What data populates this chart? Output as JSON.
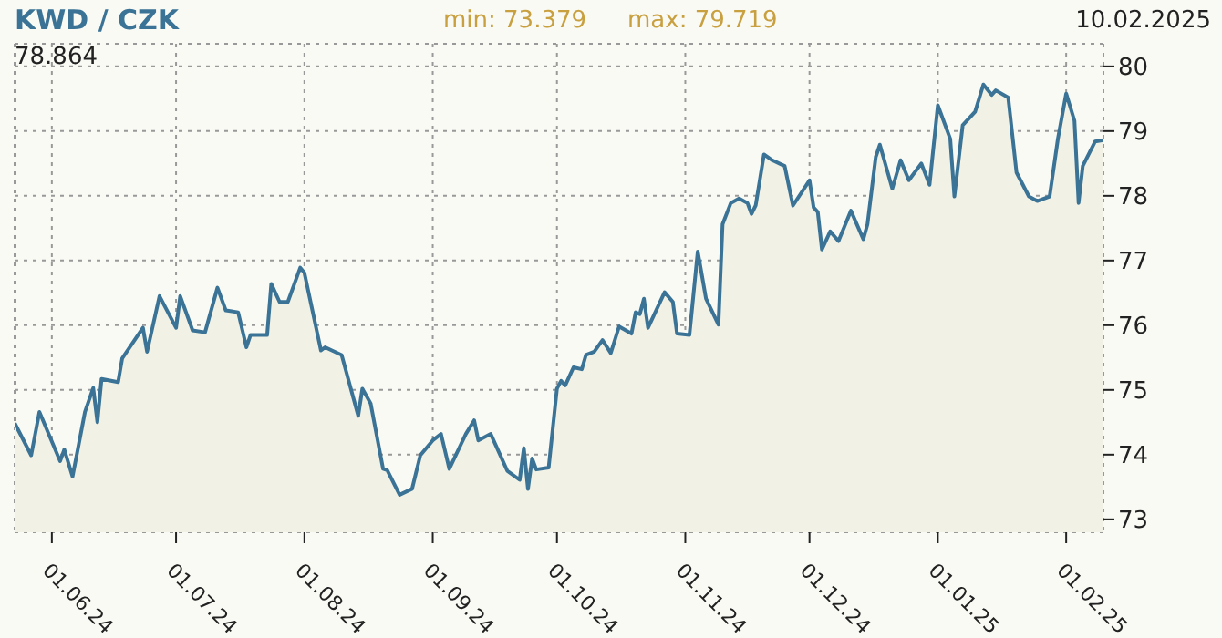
{
  "chart_data": {
    "type": "area",
    "title": "KWD / CZK",
    "annotations": [
      "min: 73.379",
      "max: 79.719",
      "10.02.2025",
      "78.864"
    ],
    "x": [
      "2024-05-23",
      "2024-05-27",
      "2024-05-29",
      "2024-06-03",
      "2024-06-04",
      "2024-06-06",
      "2024-06-09",
      "2024-06-11",
      "2024-06-12",
      "2024-06-13",
      "2024-06-17",
      "2024-06-18",
      "2024-06-23",
      "2024-06-24",
      "2024-06-27",
      "2024-07-01",
      "2024-07-02",
      "2024-07-05",
      "2024-07-08",
      "2024-07-11",
      "2024-07-13",
      "2024-07-16",
      "2024-07-18",
      "2024-07-19",
      "2024-07-23",
      "2024-07-24",
      "2024-07-26",
      "2024-07-28",
      "2024-07-31",
      "2024-08-01",
      "2024-08-05",
      "2024-08-06",
      "2024-08-10",
      "2024-08-14",
      "2024-08-15",
      "2024-08-17",
      "2024-08-20",
      "2024-08-21",
      "2024-08-24",
      "2024-08-27",
      "2024-08-29",
      "2024-09-01",
      "2024-09-03",
      "2024-09-05",
      "2024-09-09",
      "2024-09-11",
      "2024-09-12",
      "2024-09-15",
      "2024-09-19",
      "2024-09-22",
      "2024-09-23",
      "2024-09-24",
      "2024-09-25",
      "2024-09-26",
      "2024-09-29",
      "2024-10-01",
      "2024-10-02",
      "2024-10-03",
      "2024-10-05",
      "2024-10-07",
      "2024-10-08",
      "2024-10-10",
      "2024-10-12",
      "2024-10-14",
      "2024-10-16",
      "2024-10-19",
      "2024-10-20",
      "2024-10-21",
      "2024-10-22",
      "2024-10-23",
      "2024-10-27",
      "2024-10-29",
      "2024-10-30",
      "2024-11-02",
      "2024-11-04",
      "2024-11-06",
      "2024-11-09",
      "2024-11-10",
      "2024-11-12",
      "2024-11-14",
      "2024-11-16",
      "2024-11-17",
      "2024-11-18",
      "2024-11-20",
      "2024-11-22",
      "2024-11-25",
      "2024-11-27",
      "2024-12-01",
      "2024-12-02",
      "2024-12-03",
      "2024-12-04",
      "2024-12-06",
      "2024-12-08",
      "2024-12-11",
      "2024-12-14",
      "2024-12-15",
      "2024-12-17",
      "2024-12-18",
      "2024-12-21",
      "2024-12-23",
      "2024-12-25",
      "2024-12-28",
      "2024-12-30",
      "2025-01-01",
      "2025-01-04",
      "2025-01-05",
      "2025-01-07",
      "2025-01-10",
      "2025-01-12",
      "2025-01-14",
      "2025-01-15",
      "2025-01-18",
      "2025-01-20",
      "2025-01-23",
      "2025-01-25",
      "2025-01-28",
      "2025-01-30",
      "2025-02-01",
      "2025-02-03",
      "2025-02-04",
      "2025-02-05",
      "2025-02-08",
      "2025-02-10"
    ],
    "series": [
      {
        "color": "#3a7396",
        "values": [
          74.49,
          73.99,
          74.66,
          73.9,
          74.08,
          73.66,
          74.66,
          75.03,
          74.5,
          75.17,
          75.12,
          75.49,
          75.96,
          75.59,
          76.45,
          75.96,
          76.45,
          75.92,
          75.89,
          76.58,
          76.23,
          76.2,
          75.66,
          75.85,
          75.85,
          76.64,
          76.36,
          76.36,
          76.89,
          76.81,
          75.61,
          75.66,
          75.54,
          74.6,
          75.02,
          74.79,
          73.78,
          73.76,
          73.38,
          73.47,
          73.99,
          74.22,
          74.32,
          73.78,
          74.32,
          74.53,
          74.22,
          74.32,
          73.75,
          73.61,
          74.1,
          73.47,
          73.94,
          73.77,
          73.8,
          75.02,
          75.14,
          75.07,
          75.35,
          75.32,
          75.54,
          75.59,
          75.77,
          75.57,
          75.98,
          75.87,
          76.2,
          76.17,
          76.41,
          75.96,
          76.51,
          76.36,
          75.87,
          75.85,
          77.14,
          76.41,
          76.01,
          77.56,
          77.89,
          77.96,
          77.89,
          77.72,
          77.85,
          78.64,
          78.55,
          78.46,
          77.85,
          78.24,
          77.82,
          77.75,
          77.17,
          77.45,
          77.3,
          77.77,
          77.33,
          77.56,
          78.6,
          78.79,
          78.11,
          78.55,
          78.24,
          78.5,
          78.17,
          79.4,
          78.88,
          77.99,
          79.09,
          79.3,
          79.72,
          79.56,
          79.63,
          79.52,
          78.36,
          77.99,
          77.92,
          77.99,
          78.88,
          79.58,
          79.16,
          77.89,
          78.46,
          78.84,
          78.86
        ]
      }
    ],
    "xlim": [
      "2024-05-23",
      "2025-02-10"
    ],
    "xticks": [
      {
        "value": "2024-06-01",
        "label": "01.06.24"
      },
      {
        "value": "2024-07-01",
        "label": "01.07.24"
      },
      {
        "value": "2024-08-01",
        "label": "01.08.24"
      },
      {
        "value": "2024-09-01",
        "label": "01.09.24"
      },
      {
        "value": "2024-10-01",
        "label": "01.10.24"
      },
      {
        "value": "2024-11-01",
        "label": "01.11.24"
      },
      {
        "value": "2024-12-01",
        "label": "01.12.24"
      },
      {
        "value": "2025-01-01",
        "label": "01.01.25"
      },
      {
        "value": "2025-02-01",
        "label": "01.02.25"
      }
    ],
    "ylim": [
      72.8,
      80.35
    ],
    "yticks": [
      73,
      74,
      75,
      76,
      77,
      78,
      79,
      80
    ],
    "grid": true,
    "legend": false
  }
}
